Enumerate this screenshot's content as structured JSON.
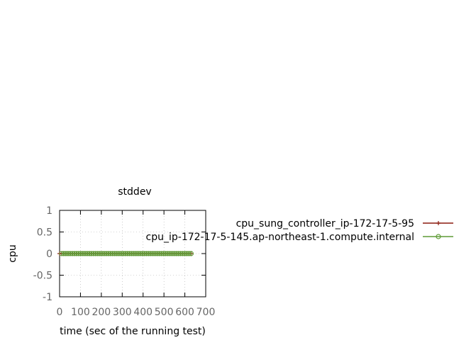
{
  "chart_data": {
    "type": "line",
    "title": "stddev",
    "xlabel": "time (sec of the running test)",
    "ylabel": "cpu",
    "xlim": [
      0,
      700
    ],
    "ylim": [
      -1,
      1
    ],
    "xticks": [
      "0",
      "100",
      "200",
      "300",
      "400",
      "500",
      "600",
      "700"
    ],
    "yticks": [
      "-1",
      "-0.5",
      "0",
      "0.5",
      "1"
    ],
    "grid": true,
    "legend_position": "right",
    "series": [
      {
        "name": "cpu_sung_controller_ip-172-17-5-95",
        "color": "#8b1a0e",
        "marker": "plus",
        "x": [
          0,
          630
        ],
        "y": [
          0,
          0
        ]
      },
      {
        "name": "cpu_ip-172-17-5-145.ap-northeast-1.compute.internal",
        "color": "#5e9c36",
        "marker": "circle",
        "x": [
          10,
          630
        ],
        "y": [
          0,
          0
        ]
      }
    ]
  }
}
